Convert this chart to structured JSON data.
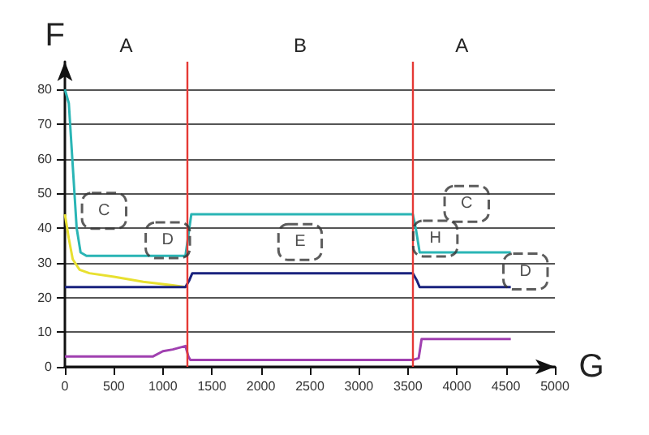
{
  "chart_data": {
    "type": "line",
    "xlabel": "G",
    "ylabel": "F",
    "xlim": [
      0,
      5000
    ],
    "xticks": [
      0,
      500,
      1000,
      1500,
      2000,
      2500,
      3000,
      3500,
      4000,
      4500,
      5000
    ],
    "ylim": [
      0,
      88
    ],
    "yticks": [
      0,
      10,
      20,
      30,
      40,
      50,
      60,
      70,
      80
    ],
    "grid": "y",
    "marker": "none",
    "line_style": "solid",
    "series": [
      {
        "color": "#2ab5b5",
        "x": [
          0,
          40,
          80,
          120,
          160,
          220,
          1230,
          1270,
          1290,
          3550,
          3580,
          3620,
          4550
        ],
        "values": [
          80,
          76,
          58,
          40,
          33,
          32,
          32,
          40,
          44,
          44,
          40,
          33,
          33
        ]
      },
      {
        "color": "#e8e030",
        "x": [
          0,
          40,
          80,
          150,
          250,
          500,
          800,
          1100,
          1230
        ],
        "values": [
          44,
          37,
          31,
          28,
          27,
          26,
          24.5,
          23.5,
          23
        ]
      },
      {
        "color": "#1a237e",
        "x": [
          0,
          1230,
          1270,
          1300,
          3550,
          3590,
          3620,
          4550
        ],
        "values": [
          23,
          23,
          25,
          27,
          27,
          25,
          23,
          23
        ]
      },
      {
        "color": "#a040b0",
        "x": [
          0,
          900,
          1000,
          1100,
          1230,
          1260,
          1280,
          3550,
          3610,
          3640,
          4550
        ],
        "values": [
          3,
          3,
          4.5,
          5,
          6,
          3,
          2,
          2,
          2.5,
          8,
          8
        ]
      }
    ],
    "ref_lines": [
      {
        "axis": "x",
        "value": 1250,
        "color": "#e53935"
      },
      {
        "axis": "x",
        "value": 3550,
        "color": "#e53935"
      }
    ],
    "annotations": [
      "A",
      "B",
      "A",
      {
        "text": "C",
        "x": 400,
        "y": 45
      },
      {
        "text": "D",
        "x": 1050,
        "y": 36.5
      },
      {
        "text": "E",
        "x": 2400,
        "y": 36
      },
      {
        "text": "H",
        "x": 3780,
        "y": 37
      },
      {
        "text": "C",
        "x": 4100,
        "y": 47
      },
      {
        "text": "D",
        "x": 4700,
        "y": 27.5
      }
    ]
  }
}
